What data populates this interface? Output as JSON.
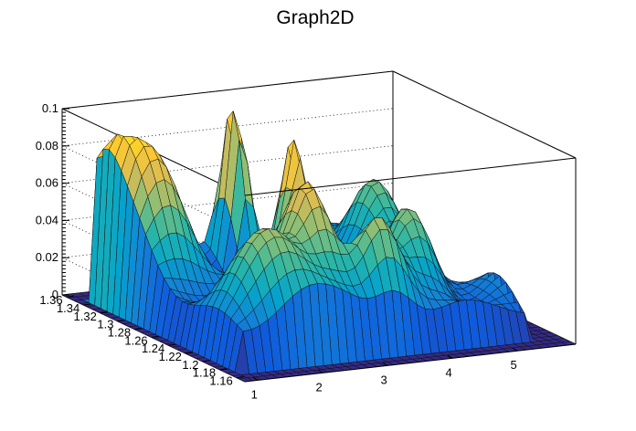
{
  "chart_data": {
    "type": "surface",
    "title": "Graph2D",
    "x_ticks": [
      "1",
      "2",
      "3",
      "4",
      "5"
    ],
    "y_ticks": [
      "1.16",
      "1.18",
      "1.2",
      "1.22",
      "1.24",
      "1.26",
      "1.28",
      "1.3",
      "1.32",
      "1.34",
      "1.36"
    ],
    "z_ticks": [
      "0",
      "0.02",
      "0.04",
      "0.06",
      "0.08",
      "0.1"
    ],
    "xlim": [
      0.8,
      5.9
    ],
    "ylim": [
      1.15,
      1.365
    ],
    "zlim": [
      0,
      0.1
    ],
    "grid": true,
    "colormap": [
      "#352a87",
      "#0f5cdd",
      "#1481d6",
      "#06a4ca",
      "#2eb7a4",
      "#87bf77",
      "#d1bb59",
      "#fec832",
      "#f9fb0e"
    ],
    "peaks": [
      {
        "x": 3.0,
        "y": 1.33,
        "z": 0.088,
        "sx": 0.12,
        "sy": 0.012
      },
      {
        "x": 3.0,
        "y": 1.26,
        "z": 0.075,
        "sx": 0.14,
        "sy": 0.014
      },
      {
        "x": 2.7,
        "y": 1.22,
        "z": 0.06,
        "sx": 0.25,
        "sy": 0.02
      },
      {
        "x": 1.4,
        "y": 1.31,
        "z": 0.058,
        "sx": 0.4,
        "sy": 0.03
      },
      {
        "x": 4.7,
        "y": 1.3,
        "z": 0.052,
        "sx": 0.3,
        "sy": 0.02
      },
      {
        "x": 4.3,
        "y": 1.22,
        "z": 0.05,
        "sx": 0.3,
        "sy": 0.02
      },
      {
        "x": 2.0,
        "y": 1.2,
        "z": 0.045,
        "sx": 0.5,
        "sy": 0.025
      },
      {
        "x": 3.4,
        "y": 1.19,
        "z": 0.042,
        "sx": 0.3,
        "sy": 0.015
      },
      {
        "x": 1.1,
        "y": 1.34,
        "z": 0.04,
        "sx": 0.2,
        "sy": 0.02
      }
    ]
  }
}
